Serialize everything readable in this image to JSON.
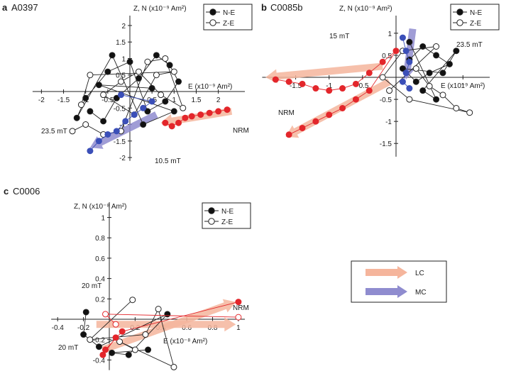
{
  "colors": {
    "axis": "#222222",
    "closed_point": "#111111",
    "open_point": "#ffffff",
    "point_edge": "#222222",
    "red_point": "#e3262b",
    "blue_point": "#3b4fb8",
    "lc_arrow": "#f5b59c",
    "mc_arrow": "#8f8ccf"
  },
  "legend": {
    "closed_label": "N-E",
    "open_label": "Z-E",
    "lc_label": "LC",
    "mc_label": "MC"
  },
  "chart_data": [
    {
      "type": "scatter",
      "panel_letter": "a",
      "title": "A0397",
      "xlabel": "E (x10⁻⁹ Am²)",
      "ylabel": "Z, N (x10⁻⁹ Am²)",
      "xlim": [
        -2.2,
        2.6
      ],
      "ylim": [
        -2.1,
        2.3
      ],
      "x_ticks": [
        "-2",
        "-1.5",
        "-1",
        "-0.5",
        "0.5",
        "1",
        "1.5",
        "2"
      ],
      "y_ticks": [
        "2",
        "1.5",
        "1",
        "0.5",
        "-0.5",
        "-1",
        "-1.5",
        "-2"
      ],
      "annotations": [
        "NRM",
        "23.5 mT",
        "10.5 mT"
      ],
      "series": [
        {
          "name": "N-E",
          "marker": "closed",
          "points": [
            [
              -0.9,
              -0.6
            ],
            [
              -0.6,
              -0.9
            ],
            [
              -0.3,
              -0.2
            ],
            [
              0.2,
              0.4
            ],
            [
              0.6,
              1.1
            ],
            [
              0.9,
              0.8
            ],
            [
              1.1,
              0.3
            ],
            [
              0.8,
              -0.3
            ],
            [
              0.4,
              -0.6
            ],
            [
              0,
              0.9
            ],
            [
              -0.5,
              0.6
            ],
            [
              -1.0,
              -0.2
            ],
            [
              -1.2,
              -0.8
            ],
            [
              -0.4,
              1.1
            ],
            [
              0.3,
              -1.0
            ],
            [
              1.0,
              -0.6
            ],
            [
              -0.7,
              0.2
            ],
            [
              0.5,
              0.1
            ]
          ]
        },
        {
          "name": "Z-E",
          "marker": "open",
          "points": [
            [
              -1.3,
              -1.2
            ],
            [
              -1.0,
              -1.0
            ],
            [
              -0.6,
              -1.3
            ],
            [
              -0.2,
              -1.2
            ],
            [
              0.4,
              0.9
            ],
            [
              0.8,
              1.0
            ],
            [
              1.2,
              -0.5
            ],
            [
              0.7,
              -0.1
            ],
            [
              0.2,
              0.6
            ],
            [
              -0.2,
              0.3
            ],
            [
              -0.6,
              -0.1
            ],
            [
              0.1,
              -0.7
            ],
            [
              0.6,
              0.5
            ],
            [
              1.0,
              0.6
            ],
            [
              -0.9,
              0.5
            ],
            [
              -1.1,
              -0.4
            ]
          ]
        },
        {
          "name": "red (NRM demag)",
          "marker": "red",
          "points": [
            [
              2.2,
              -0.55
            ],
            [
              2.0,
              -0.6
            ],
            [
              1.8,
              -0.65
            ],
            [
              1.6,
              -0.7
            ],
            [
              1.4,
              -0.75
            ],
            [
              1.25,
              -0.8
            ],
            [
              1.1,
              -0.95
            ],
            [
              0.95,
              -1.05
            ],
            [
              0.8,
              -0.95
            ]
          ]
        },
        {
          "name": "blue (MC)",
          "marker": "blue",
          "points": [
            [
              -0.9,
              -1.8
            ],
            [
              -0.7,
              -1.5
            ],
            [
              -0.5,
              -1.3
            ],
            [
              -0.3,
              -1.2
            ],
            [
              -0.1,
              -0.9
            ],
            [
              0.1,
              -0.7
            ],
            [
              0.3,
              -0.5
            ],
            [
              0.5,
              -0.3
            ],
            [
              -0.2,
              -0.1
            ]
          ]
        }
      ],
      "arrows": [
        {
          "name": "LC",
          "from": [
            2.3,
            -0.6
          ],
          "to": [
            0.7,
            -0.95
          ]
        },
        {
          "name": "MC",
          "from": [
            0.6,
            -0.7
          ],
          "to": [
            -0.9,
            -1.7
          ]
        }
      ]
    },
    {
      "type": "scatter",
      "panel_letter": "b",
      "title": "C0085b",
      "xlabel": "E (x10⁻⁹ Am²)",
      "ylabel": "Z, N (x10⁻⁹ Am²)",
      "xlim": [
        -2.0,
        1.4
      ],
      "ylim": [
        -1.8,
        1.4
      ],
      "x_ticks": [
        "-1.5",
        "-1",
        "-0.5",
        "1"
      ],
      "y_ticks": [
        "1",
        "0.5",
        "-0.5",
        "-1",
        "-1.5"
      ],
      "annotations": [
        "15 mT",
        "23.5 mT",
        "NRM"
      ],
      "series": [
        {
          "name": "N-E",
          "marker": "closed",
          "points": [
            [
              0.2,
              0.4
            ],
            [
              0.4,
              0.7
            ],
            [
              0.6,
              0.5
            ],
            [
              0.8,
              0.3
            ],
            [
              0.5,
              0.1
            ],
            [
              0.3,
              -0.1
            ],
            [
              0.1,
              0.2
            ],
            [
              0.7,
              0.1
            ],
            [
              0.9,
              0.6
            ],
            [
              0.4,
              -0.3
            ],
            [
              0.6,
              -0.5
            ],
            [
              0.2,
              0.8
            ]
          ]
        },
        {
          "name": "Z-E",
          "marker": "open",
          "points": [
            [
              0.3,
              0.2
            ],
            [
              0.5,
              -0.2
            ],
            [
              0.7,
              -0.4
            ],
            [
              0.9,
              -0.7
            ],
            [
              1.1,
              -0.8
            ],
            [
              0.2,
              -0.5
            ],
            [
              -0.2,
              0.0
            ],
            [
              0.1,
              0.6
            ],
            [
              0.6,
              0.7
            ],
            [
              -0.1,
              -0.3
            ]
          ]
        },
        {
          "name": "red (NRM demag)",
          "marker": "red",
          "points": [
            [
              -1.8,
              -0.05
            ],
            [
              -1.6,
              -0.1
            ],
            [
              -1.4,
              -0.15
            ],
            [
              -1.2,
              -0.25
            ],
            [
              -1.0,
              -0.3
            ],
            [
              -0.8,
              -0.25
            ],
            [
              -0.6,
              -0.15
            ],
            [
              -0.4,
              0.1
            ],
            [
              -0.2,
              0.35
            ],
            [
              0.0,
              0.6
            ],
            [
              -0.4,
              -0.3
            ],
            [
              -0.6,
              -0.5
            ],
            [
              -0.8,
              -0.7
            ],
            [
              -1.0,
              -0.85
            ],
            [
              -1.2,
              -1.0
            ],
            [
              -1.4,
              -1.15
            ],
            [
              -1.6,
              -1.3
            ]
          ]
        },
        {
          "name": "blue (MC)",
          "marker": "blue",
          "points": [
            [
              0.1,
              0.9
            ],
            [
              0.15,
              0.6
            ],
            [
              0.2,
              0.35
            ],
            [
              0.15,
              0.1
            ],
            [
              0.1,
              -0.1
            ],
            [
              0.2,
              -0.25
            ]
          ]
        }
      ],
      "arrows": [
        {
          "name": "LC",
          "from": [
            -0.2,
            0.25
          ],
          "to": [
            -1.95,
            0.0
          ]
        },
        {
          "name": "LC",
          "from": [
            -0.1,
            -0.1
          ],
          "to": [
            -1.65,
            -1.35
          ]
        },
        {
          "name": "MC",
          "from": [
            0.25,
            1.1
          ],
          "to": [
            0.15,
            -0.05
          ]
        }
      ]
    },
    {
      "type": "scatter",
      "panel_letter": "c",
      "title": "C0006",
      "xlabel": "E (x10⁻⁸ Am²)",
      "ylabel": "Z, N (x10⁻⁸ Am²)",
      "xlim": [
        -0.45,
        1.05
      ],
      "ylim": [
        -0.5,
        1.15
      ],
      "x_ticks": [
        "-0.4",
        "-0.2",
        "0.2",
        "0.4",
        "0.6",
        "0.8",
        "1"
      ],
      "y_ticks": [
        "1",
        "0.8",
        "0.6",
        "0.4",
        "0.2",
        "-0.2",
        "-0.4"
      ],
      "annotations": [
        "20 mT",
        "20 mT",
        "NRM"
      ],
      "series": [
        {
          "name": "N-E",
          "marker": "closed",
          "points": [
            [
              -0.18,
              0.07
            ],
            [
              -0.2,
              -0.15
            ],
            [
              -0.08,
              -0.27
            ],
            [
              0.45,
              0.05
            ],
            [
              0.15,
              -0.35
            ],
            [
              0.02,
              -0.33
            ],
            [
              0.3,
              -0.3
            ]
          ]
        },
        {
          "name": "Z-E",
          "marker": "open",
          "points": [
            [
              0.18,
              0.19
            ],
            [
              -0.15,
              -0.2
            ],
            [
              0.28,
              -0.15
            ],
            [
              0.38,
              0.1
            ],
            [
              0.5,
              -0.47
            ],
            [
              0.08,
              -0.22
            ],
            [
              0.2,
              -0.3
            ]
          ]
        },
        {
          "name": "red (NRM demag)",
          "marker": "red",
          "points": [
            [
              1.0,
              0.17
            ],
            [
              0.1,
              -0.12
            ],
            [
              -0.03,
              -0.3
            ],
            [
              -0.05,
              -0.35
            ],
            [
              0.05,
              -0.18
            ]
          ]
        },
        {
          "name": "red open",
          "marker": "red-open",
          "points": [
            [
              1.0,
              0.02
            ],
            [
              -0.03,
              0.05
            ],
            [
              0.05,
              -0.05
            ]
          ]
        }
      ],
      "arrows": [
        {
          "name": "LC",
          "from": [
            -0.05,
            -0.3
          ],
          "to": [
            0.98,
            0.17
          ]
        },
        {
          "name": "LC",
          "from": [
            -0.1,
            -0.05
          ],
          "to": [
            0.98,
            -0.05
          ]
        }
      ]
    }
  ]
}
